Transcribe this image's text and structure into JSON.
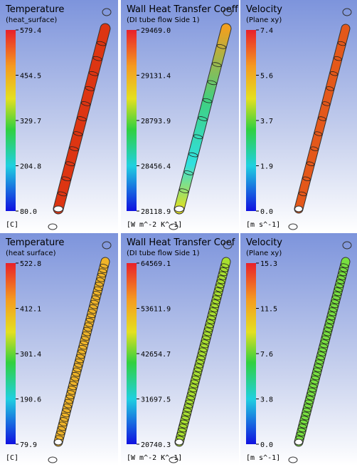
{
  "panels": [
    {
      "title": "Temperature",
      "subtitle": "(heat_surface)",
      "scale_labels": [
        "579.4",
        "454.5",
        "329.7",
        "204.8",
        "80.0"
      ],
      "unit": "[C]"
    },
    {
      "title": "Wall Heat Transfer Coeff",
      "subtitle": "(DI tube flow Side 1)",
      "scale_labels": [
        "29469.0",
        "29131.4",
        "28793.9",
        "28456.4",
        "28118.9"
      ],
      "unit": "[W m^-2 K^-1]"
    },
    {
      "title": "Velocity",
      "subtitle": "(Plane xy)",
      "scale_labels": [
        "7.4",
        "5.6",
        "3.7",
        "1.9",
        "0.0"
      ],
      "unit": "[m s^-1]"
    },
    {
      "title": "Temperature",
      "subtitle": "(heat surface)",
      "scale_labels": [
        "522.8",
        "412.1",
        "301.4",
        "190.6",
        "79.9"
      ],
      "unit": "[C]"
    },
    {
      "title": "Wall Heat Transfer Coef",
      "subtitle": "(DI tube flow Side 1)",
      "scale_labels": [
        "64569.1",
        "53611.9",
        "42654.7",
        "31697.5",
        "20740.3"
      ],
      "unit": "[W m^-2 K^-1]"
    },
    {
      "title": "Velocity",
      "subtitle": "(Plane xy)",
      "scale_labels": [
        "15.3",
        "11.5",
        "7.6",
        "3.8",
        "0.0"
      ],
      "unit": "[m s^-1]"
    }
  ]
}
